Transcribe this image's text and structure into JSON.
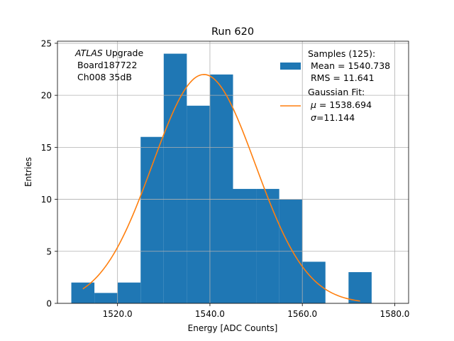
{
  "chart_data": {
    "type": "bar",
    "title": "Run 620",
    "xlabel": "Energy [ADC Counts]",
    "ylabel": "Entries",
    "xlim": [
      1507.0,
      1583.0
    ],
    "ylim": [
      0,
      25.2
    ],
    "grid": true,
    "x_ticks": [
      1520.0,
      1540.0,
      1560.0,
      1580.0
    ],
    "x_tick_labels": [
      "1520.0",
      "1540.0",
      "1560.0",
      "1580.0"
    ],
    "y_ticks": [
      0,
      5,
      10,
      15,
      20,
      25
    ],
    "y_tick_labels": [
      "0",
      "5",
      "10",
      "15",
      "20",
      "25"
    ],
    "histogram": {
      "name": "Samples (125)",
      "color": "#1f77b4",
      "bin_edges": [
        1510,
        1515,
        1520,
        1525,
        1530,
        1535,
        1540,
        1545,
        1550,
        1555,
        1560,
        1565,
        1570,
        1575,
        1580
      ],
      "counts": [
        2,
        1,
        2,
        16,
        24,
        19,
        22,
        11,
        11,
        10,
        4,
        0,
        3,
        0
      ]
    },
    "fit": {
      "name": "Gaussian Fit",
      "color": "#ff7f0e",
      "amplitude": 22.0,
      "mu": 1538.694,
      "sigma": 11.144,
      "x_range": [
        1512.5,
        1572.5
      ]
    },
    "annotation": {
      "italic": "ATLAS",
      "rest": " Upgrade",
      "line2": "Board187722",
      "line3": "Ch008 35dB"
    },
    "legend": {
      "position": "top-right",
      "hist_line1": "Samples (125):",
      "hist_line2": "Mean = 1540.738",
      "hist_line3": "RMS = 11.641",
      "fit_line1": "Gaussian Fit:",
      "fit_line2_symbol": "μ",
      "fit_line2_rest": " = 1538.694",
      "fit_line3_symbol": "σ",
      "fit_line3_rest": "=11.144"
    }
  }
}
